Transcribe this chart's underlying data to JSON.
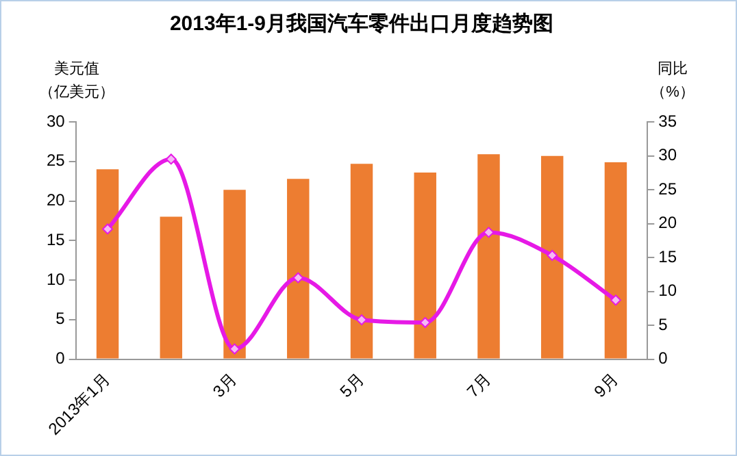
{
  "chart_data": {
    "type": "bar",
    "title": "2013年1-9月我国汽车零件出口月度趋势图",
    "ylabel": "美元值（亿美元）",
    "y2label": "同比（%）",
    "categories": [
      "2013年1月",
      null,
      "3月",
      null,
      "5月",
      null,
      "7月",
      null,
      "9月"
    ],
    "series": [
      {
        "color": "#ed7d31",
        "values": [
          24.0,
          18.0,
          21.4,
          22.8,
          24.7,
          23.6,
          25.9,
          25.7,
          24.9
        ]
      },
      {
        "type": "line",
        "axis": "y2",
        "color": "#e619e6",
        "marker": "diamond",
        "values": [
          19.2,
          29.5,
          1.5,
          12.0,
          5.8,
          5.4,
          18.7,
          15.3,
          8.7
        ]
      }
    ],
    "ylim": [
      0,
      30
    ],
    "yticks": [
      0,
      5,
      10,
      15,
      20,
      25,
      30
    ],
    "y2lim": [
      0,
      35
    ],
    "y2ticks": [
      0,
      5,
      10,
      15,
      20,
      25,
      30,
      35
    ],
    "grid": false,
    "legend": false
  }
}
